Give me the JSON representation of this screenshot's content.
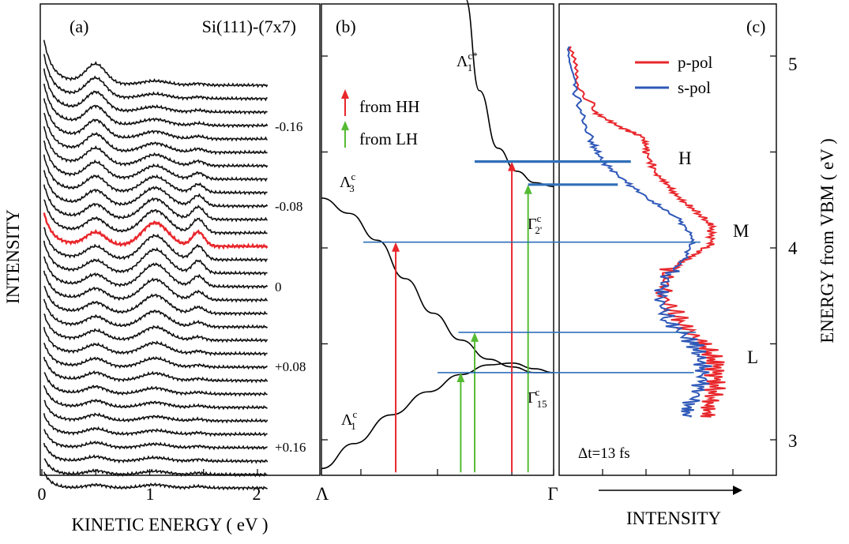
{
  "chart_data": [
    {
      "panel": "(a)",
      "type": "line",
      "title": "Si(111)-(7x7)",
      "xlabel": "KINETIC ENERGY ( eV )",
      "ylabel": "INTENSITY",
      "xlim": [
        0,
        2.3
      ],
      "xticks": [
        "0",
        "1",
        "2"
      ],
      "delay_labels": [
        "-0.16",
        "-0.08",
        "0",
        "+0.08",
        "+0.16"
      ],
      "trace_count": 31,
      "highlighted_trace": "0",
      "colors": {
        "traces": "#111111",
        "highlight": "#e8262b"
      },
      "features_eV": {
        "low_energy_peak": 0.5,
        "main_peak": 1.05,
        "shoulder": 1.45
      },
      "grid": false
    },
    {
      "panel": "(b)",
      "type": "line",
      "title": "",
      "xticks": [
        "Λ",
        "Γ"
      ],
      "ylim": [
        2.83,
        5.25
      ],
      "bands": [
        {
          "label_base": "Λ",
          "label_sup": "c*",
          "label_sub": "1",
          "points": [
            [
              0.62,
              5.3
            ],
            [
              0.68,
              4.82
            ],
            [
              0.76,
              4.52
            ],
            [
              0.84,
              4.4
            ],
            [
              0.92,
              4.34
            ],
            [
              1.0,
              4.32
            ]
          ]
        },
        {
          "label_base": "Λ",
          "label_sup": "c",
          "label_sub": "3",
          "points": [
            [
              0.0,
              4.26
            ],
            [
              0.12,
              4.18
            ],
            [
              0.24,
              4.04
            ],
            [
              0.36,
              3.84
            ],
            [
              0.48,
              3.66
            ],
            [
              0.6,
              3.52
            ],
            [
              0.72,
              3.42
            ],
            [
              0.82,
              3.38
            ],
            [
              0.92,
              3.35
            ],
            [
              1.0,
              3.35
            ]
          ]
        },
        {
          "label_base": "Λ",
          "label_sup": "c",
          "label_sub": "1",
          "points": [
            [
              0.0,
              2.85
            ],
            [
              0.14,
              2.98
            ],
            [
              0.3,
              3.13
            ],
            [
              0.46,
              3.25
            ],
            [
              0.6,
              3.34
            ],
            [
              0.72,
              3.39
            ],
            [
              0.82,
              3.4
            ],
            [
              0.92,
              3.37
            ],
            [
              1.0,
              3.35
            ]
          ]
        }
      ],
      "gamma_labels": [
        {
          "base": "Γ",
          "sup": "c",
          "sub": "2'"
        },
        {
          "base": "Γ",
          "sub": "15",
          "sup": "c"
        }
      ],
      "transitions": [
        {
          "x": 0.32,
          "from": 2.83,
          "to": 4.03,
          "color": "#e8262b",
          "type": "HH"
        },
        {
          "x": 0.82,
          "from": 2.83,
          "to": 4.45,
          "color": "#e8262b",
          "type": "HH"
        },
        {
          "x": 0.6,
          "from": 2.83,
          "to": 3.35,
          "color": "#55bb33",
          "type": "LH"
        },
        {
          "x": 0.66,
          "from": 2.83,
          "to": 3.56,
          "color": "#55bb33",
          "type": "LH"
        },
        {
          "x": 0.89,
          "from": 2.83,
          "to": 4.33,
          "color": "#55bb33",
          "type": "LH"
        }
      ],
      "legend": {
        "hh_label": "from HH",
        "lh_label": "from LH",
        "position": "upper-left"
      }
    },
    {
      "panel": "(c)",
      "type": "line",
      "xlabel": "INTENSITY",
      "ylabel": "ENERGY from VBM ( eV )",
      "ylim": [
        2.83,
        5.25
      ],
      "yticks": [
        "3",
        "4",
        "5"
      ],
      "series": [
        {
          "name": "p-pol",
          "color": "#e8262b",
          "points": [
            [
              0.05,
              5.05
            ],
            [
              0.08,
              4.85
            ],
            [
              0.18,
              4.7
            ],
            [
              0.3,
              4.62
            ],
            [
              0.38,
              4.58
            ],
            [
              0.4,
              4.5
            ],
            [
              0.45,
              4.38
            ],
            [
              0.52,
              4.3
            ],
            [
              0.6,
              4.22
            ],
            [
              0.7,
              4.12
            ],
            [
              0.7,
              4.02
            ],
            [
              0.6,
              3.95
            ],
            [
              0.5,
              3.88
            ],
            [
              0.48,
              3.75
            ],
            [
              0.55,
              3.62
            ],
            [
              0.66,
              3.5
            ],
            [
              0.72,
              3.4
            ],
            [
              0.72,
              3.3
            ],
            [
              0.7,
              3.2
            ],
            [
              0.7,
              3.12
            ]
          ]
        },
        {
          "name": "s-pol",
          "color": "#2f58b8",
          "points": [
            [
              0.05,
              5.05
            ],
            [
              0.07,
              4.85
            ],
            [
              0.1,
              4.7
            ],
            [
              0.15,
              4.55
            ],
            [
              0.2,
              4.45
            ],
            [
              0.3,
              4.35
            ],
            [
              0.42,
              4.25
            ],
            [
              0.55,
              4.15
            ],
            [
              0.62,
              4.05
            ],
            [
              0.58,
              3.95
            ],
            [
              0.5,
              3.85
            ],
            [
              0.46,
              3.75
            ],
            [
              0.5,
              3.62
            ],
            [
              0.62,
              3.5
            ],
            [
              0.66,
              3.4
            ],
            [
              0.66,
              3.3
            ],
            [
              0.62,
              3.2
            ],
            [
              0.6,
              3.12
            ]
          ]
        }
      ],
      "annotations": [
        "H",
        "M",
        "L"
      ],
      "delay": "Δt=13 fs"
    }
  ],
  "shared_levels": [
    {
      "energy": 4.45,
      "x_start": 0.66,
      "x_end": 0.33,
      "thick": true
    },
    {
      "energy": 4.33,
      "x_start": 0.89,
      "x_end": 0.27,
      "thick": true
    },
    {
      "energy": 4.03,
      "x_start": 0.18,
      "x_end": 0.65,
      "thick": false
    },
    {
      "energy": 3.56,
      "x_start": 0.59,
      "x_end": 0.63,
      "thick": false
    },
    {
      "energy": 3.35,
      "x_start": 0.5,
      "x_end": 0.62,
      "thick": false
    }
  ],
  "level_color": "#2f6fb8"
}
